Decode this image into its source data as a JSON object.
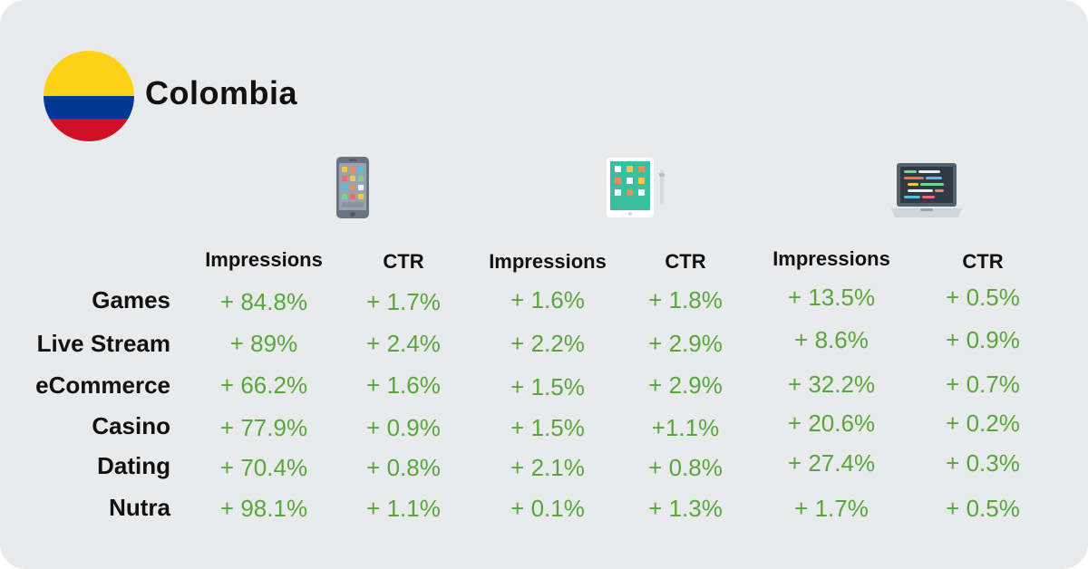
{
  "country": {
    "name": "Colombia",
    "flag_colors": [
      "#fcd116",
      "#003893",
      "#ce1126"
    ]
  },
  "devices": [
    {
      "icon": "smartphone-icon",
      "impressions_label": "Impressions",
      "ctr_label": "CTR"
    },
    {
      "icon": "tablet-icon",
      "impressions_label": "Impressions",
      "ctr_label": "CTR"
    },
    {
      "icon": "laptop-icon",
      "impressions_label": "Impressions",
      "ctr_label": "CTR"
    }
  ],
  "accent_color": "#5aa63e",
  "rows": [
    {
      "label": "Games",
      "values": [
        "+ 84.8%",
        "+ 1.7%",
        "+ 1.6%",
        "+ 1.8%",
        "+ 13.5%",
        "+ 0.5%"
      ]
    },
    {
      "label": "Live Stream",
      "values": [
        "+ 89%",
        "+ 2.4%",
        "+ 2.2%",
        "+ 2.9%",
        "+ 8.6%",
        "+ 0.9%"
      ]
    },
    {
      "label": "eCommerce",
      "values": [
        "+ 66.2%",
        "+ 1.6%",
        "+ 1.5%",
        "+ 2.9%",
        "+ 32.2%",
        "+ 0.7%"
      ]
    },
    {
      "label": "Casino",
      "values": [
        "+ 77.9%",
        "+ 0.9%",
        "+ 1.5%",
        "+1.1%",
        "+ 20.6%",
        "+ 0.2%"
      ]
    },
    {
      "label": "Dating",
      "values": [
        "+ 70.4%",
        "+ 0.8%",
        "+ 2.1%",
        "+ 0.8%",
        "+ 27.4%",
        "+ 0.3%"
      ]
    },
    {
      "label": "Nutra",
      "values": [
        "+ 98.1%",
        "+ 1.1%",
        "+ 0.1%",
        "+ 1.3%",
        "+ 1.7%",
        "+ 0.5%"
      ]
    }
  ]
}
